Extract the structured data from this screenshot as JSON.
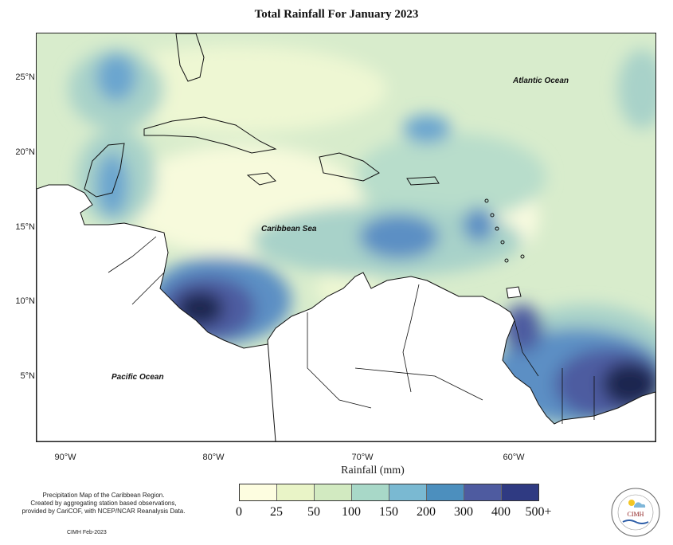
{
  "title": "Total Rainfall For January 2023",
  "map": {
    "labels": {
      "atlantic": "Atlantic Ocean",
      "caribbean": "Caribbean Sea",
      "pacific": "Pacific Ocean"
    },
    "lat_ticks": [
      "25°N",
      "20°N",
      "15°N",
      "10°N",
      "5°N"
    ],
    "lon_ticks": [
      "90°W",
      "80°W",
      "70°W",
      "60°W"
    ],
    "xlabel": "Rainfall (mm)"
  },
  "legend": {
    "labels": [
      "0",
      "25",
      "50",
      "100",
      "150",
      "200",
      "300",
      "400",
      "500+"
    ],
    "colors": [
      "#fdfde0",
      "#e9f4c7",
      "#d2eac1",
      "#a8d8c8",
      "#7ab9d2",
      "#4c8fbe",
      "#4e5ba0",
      "#2f3a82",
      "#15224f"
    ]
  },
  "notes": {
    "line1": "Precipitation Map of the Caribbean Region.",
    "line2": "Created by aggregating station based observations,",
    "line3": "provided by CariCOF, with NCEP/NCAR Reanalysis Data.",
    "credit": "CIMH Feb-2023"
  },
  "logo": {
    "text": "CIMH"
  }
}
